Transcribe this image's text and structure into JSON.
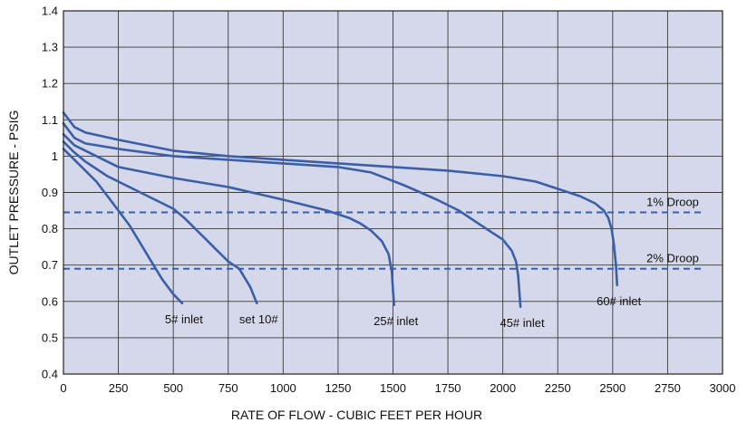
{
  "chart_data": {
    "type": "line",
    "xlabel": "RATE OF FLOW - CUBIC FEET PER HOUR",
    "ylabel": "OUTLET PRESSURE - PSIG",
    "xlim": [
      0,
      3000
    ],
    "ylim": [
      0.4,
      1.4
    ],
    "x_ticks": [
      0,
      250,
      500,
      750,
      1000,
      1250,
      1500,
      1750,
      2000,
      2250,
      2500,
      2750,
      3000
    ],
    "y_ticks": [
      0.4,
      0.5,
      0.6,
      0.7,
      0.8,
      0.9,
      1.0,
      1.1,
      1.2,
      1.3,
      1.4
    ],
    "x_tick_labels": [
      "0",
      "250",
      "500",
      "750",
      "1000",
      "1250",
      "1500",
      "1750",
      "2000",
      "2250",
      "2500",
      "2750",
      "3000"
    ],
    "y_tick_labels": [
      "0.4",
      "0.5",
      "0.6",
      "0.7",
      "0.8",
      "0.9",
      "1",
      "1.1",
      "1.2",
      "1.3",
      "1.4"
    ],
    "grid": true,
    "colors": {
      "plot_background": "#d5d8ea",
      "grid": "#3a3a3a",
      "series_line": "#3a5fa8",
      "droop_line": "#3a5fa8",
      "text": "#111111"
    },
    "series": [
      {
        "label": "5# inlet",
        "x": [
          0,
          50,
          100,
          150,
          200,
          250,
          300,
          350,
          400,
          450,
          500,
          540
        ],
        "y": [
          1.02,
          0.99,
          0.96,
          0.93,
          0.89,
          0.85,
          0.81,
          0.76,
          0.71,
          0.66,
          0.62,
          0.595
        ]
      },
      {
        "label": "set 10#",
        "x": [
          0,
          50,
          100,
          150,
          200,
          250,
          300,
          350,
          400,
          450,
          500,
          550,
          600,
          650,
          700,
          750,
          800,
          850,
          880
        ],
        "y": [
          1.04,
          1.01,
          0.985,
          0.965,
          0.945,
          0.93,
          0.915,
          0.9,
          0.885,
          0.87,
          0.855,
          0.83,
          0.8,
          0.77,
          0.74,
          0.71,
          0.69,
          0.64,
          0.595
        ]
      },
      {
        "label": "25# inlet",
        "x": [
          0,
          50,
          100,
          250,
          500,
          750,
          1000,
          1100,
          1200,
          1300,
          1350,
          1400,
          1450,
          1480,
          1495,
          1500,
          1505
        ],
        "y": [
          1.06,
          1.03,
          1.015,
          0.97,
          0.94,
          0.915,
          0.88,
          0.865,
          0.85,
          0.83,
          0.815,
          0.795,
          0.765,
          0.73,
          0.68,
          0.63,
          0.59
        ]
      },
      {
        "label": "45# inlet",
        "x": [
          0,
          50,
          100,
          250,
          500,
          750,
          1000,
          1250,
          1400,
          1550,
          1700,
          1800,
          1900,
          1950,
          2000,
          2040,
          2060,
          2070,
          2075,
          2080
        ],
        "y": [
          1.09,
          1.05,
          1.035,
          1.02,
          1.0,
          0.99,
          0.98,
          0.97,
          0.955,
          0.92,
          0.88,
          0.85,
          0.81,
          0.79,
          0.77,
          0.74,
          0.71,
          0.67,
          0.63,
          0.585
        ]
      },
      {
        "label": "60# inlet",
        "x": [
          0,
          50,
          100,
          250,
          500,
          750,
          1000,
          1250,
          1500,
          1750,
          2000,
          2150,
          2250,
          2350,
          2420,
          2460,
          2480,
          2495,
          2505,
          2515,
          2520
        ],
        "y": [
          1.12,
          1.08,
          1.065,
          1.045,
          1.015,
          1.0,
          0.99,
          0.98,
          0.97,
          0.96,
          0.945,
          0.93,
          0.91,
          0.89,
          0.87,
          0.85,
          0.83,
          0.8,
          0.76,
          0.7,
          0.645
        ]
      }
    ],
    "reference_lines": [
      {
        "label": "1% Droop",
        "y": 0.845
      },
      {
        "label": "2% Droop",
        "y": 0.69
      }
    ]
  }
}
